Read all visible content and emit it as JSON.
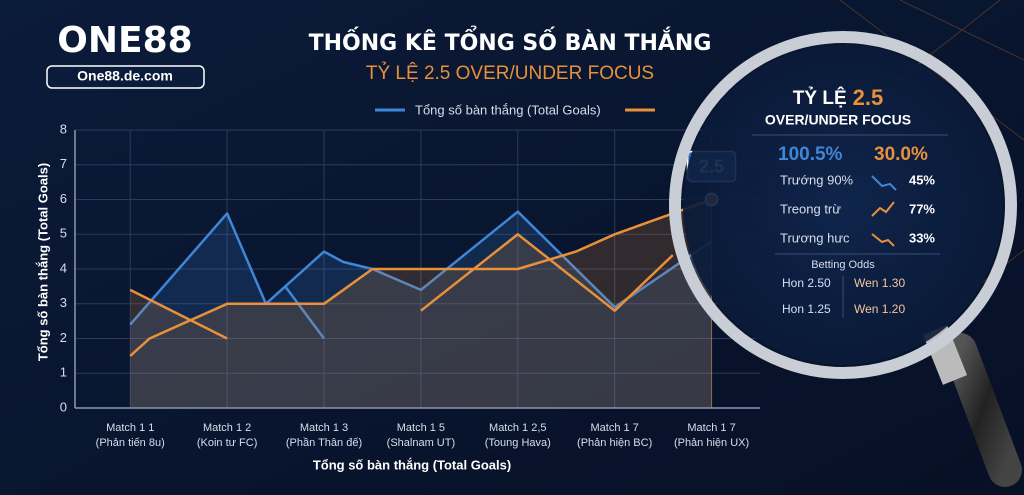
{
  "brand": {
    "logo": "ONE88",
    "site": "One88.de.com"
  },
  "chart_data": {
    "type": "line",
    "title": "THỐNG KÊ TỔNG SỐ BÀN THẮNG",
    "subtitle": "TỶ LỆ 2.5 OVER/UNDER FOCUS",
    "x_label": "Tổng số bàn thắng (Total Goals)",
    "y_label": "Tổng số bàn thắng (Total Goals)",
    "xlim": [
      -0.57,
      6.5
    ],
    "ylim": [
      0,
      8
    ],
    "xticks": [
      {
        "value": 0,
        "label": "Match 1 1"
      },
      {
        "value": 1,
        "label": "Match 1 2"
      },
      {
        "value": 2,
        "label": "Match 1 3"
      },
      {
        "value": 3,
        "label": "Match 1 5"
      },
      {
        "value": 4,
        "label": "Match 1 2,5"
      },
      {
        "value": 5,
        "label": "Match 1 7"
      },
      {
        "value": 6,
        "label": "Match 1 7"
      }
    ],
    "xtick_sublabels": [
      "(Phản tiến 8u)",
      "(Koin tư FC)",
      "(Phần Thân đế)",
      "(Shalnam UT)",
      "(Toung Hava)",
      "(Phản hiện BC)",
      "(Phản hiện UX)"
    ],
    "yticks": [
      0,
      1,
      2,
      3,
      4,
      5,
      6,
      7,
      8
    ],
    "grid": true,
    "series": [
      {
        "name": "Tổng số bàn thắng (Total Goals)",
        "color": "#3f86d6",
        "x": [
          0,
          1,
          1.4,
          2,
          2.2,
          2.5,
          3,
          4,
          5,
          6,
          null,
          1.6,
          2
        ],
        "values": [
          2.4,
          5.6,
          3.0,
          4.5,
          4.2,
          4.0,
          3.4,
          5.65,
          2.9,
          4.8,
          null,
          3.5,
          2.0
        ]
      },
      {
        "color": "#e8903a",
        "x": [
          0,
          0.2,
          1,
          2,
          2.5,
          4,
          4.6,
          5,
          6,
          null,
          0,
          1,
          null,
          3,
          4,
          5,
          5.6
        ],
        "values": [
          1.5,
          2.0,
          3.0,
          3.0,
          4.0,
          4.0,
          4.5,
          5.0,
          6.0,
          null,
          3.4,
          2.0,
          null,
          2.8,
          5.0,
          2.8,
          4.4
        ]
      }
    ],
    "callout": {
      "label": "2.5"
    }
  },
  "panel": {
    "title_prefix": "TỶ LỆ",
    "title_value": "2.5",
    "subtitle": "OVER/UNDER FOCUS",
    "stat_left": "100.5%",
    "stat_right": "30.0%",
    "rows": [
      [
        "Trướng 90%",
        "45%"
      ],
      [
        "Treong trừ",
        "77%"
      ],
      [
        "Trương hưc",
        "33%"
      ]
    ],
    "odds_title": "Betting Odds",
    "odds": [
      [
        "Hon 2.50",
        "Wen 1.30"
      ],
      [
        "Hon 1.25",
        "Wen 1.20"
      ]
    ]
  }
}
